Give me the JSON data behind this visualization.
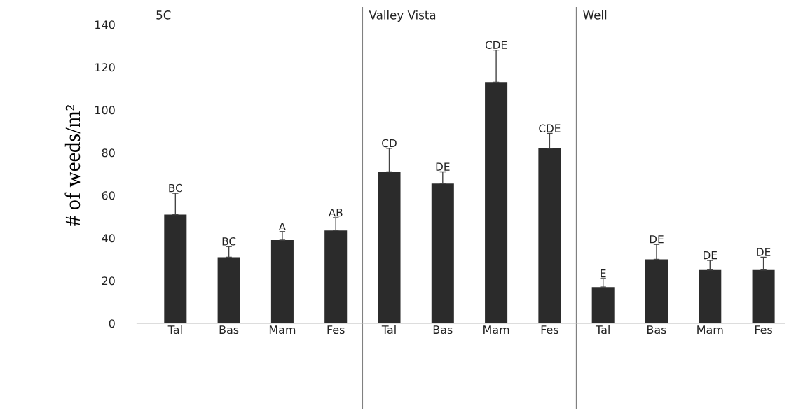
{
  "chart_data": {
    "type": "bar",
    "ylabel": "# of weeds/m²",
    "categories": [
      "Tal",
      "Bas",
      "Mam",
      "Fes",
      "Tal",
      "Bas",
      "Mam",
      "Fes",
      "Tal",
      "Bas",
      "Mam",
      "Fes"
    ],
    "values": [
      51,
      31,
      39,
      43.5,
      71,
      65.5,
      113,
      82,
      17,
      30,
      25,
      25
    ],
    "errors": [
      [
        51,
        61
      ],
      [
        31,
        36
      ],
      [
        39,
        43
      ],
      [
        43.5,
        49.5
      ],
      [
        71,
        82
      ],
      [
        65.5,
        71
      ],
      [
        113,
        128
      ],
      [
        82,
        89
      ],
      [
        17,
        21
      ],
      [
        30,
        37
      ],
      [
        25,
        29.5
      ],
      [
        25,
        31
      ]
    ],
    "value_labels": [
      "BC",
      "BC",
      "A",
      "AB",
      "CD",
      "DE",
      "CDE",
      "CDE",
      "E",
      "DE",
      "DE",
      "DE"
    ],
    "color": "#2b2b2b",
    "annotations": [
      "5C",
      "Valley Vista",
      "Well"
    ],
    "ylim": [
      0,
      148
    ],
    "yticks": [
      0,
      20,
      40,
      60,
      80,
      100,
      120,
      140
    ],
    "grid": false
  }
}
